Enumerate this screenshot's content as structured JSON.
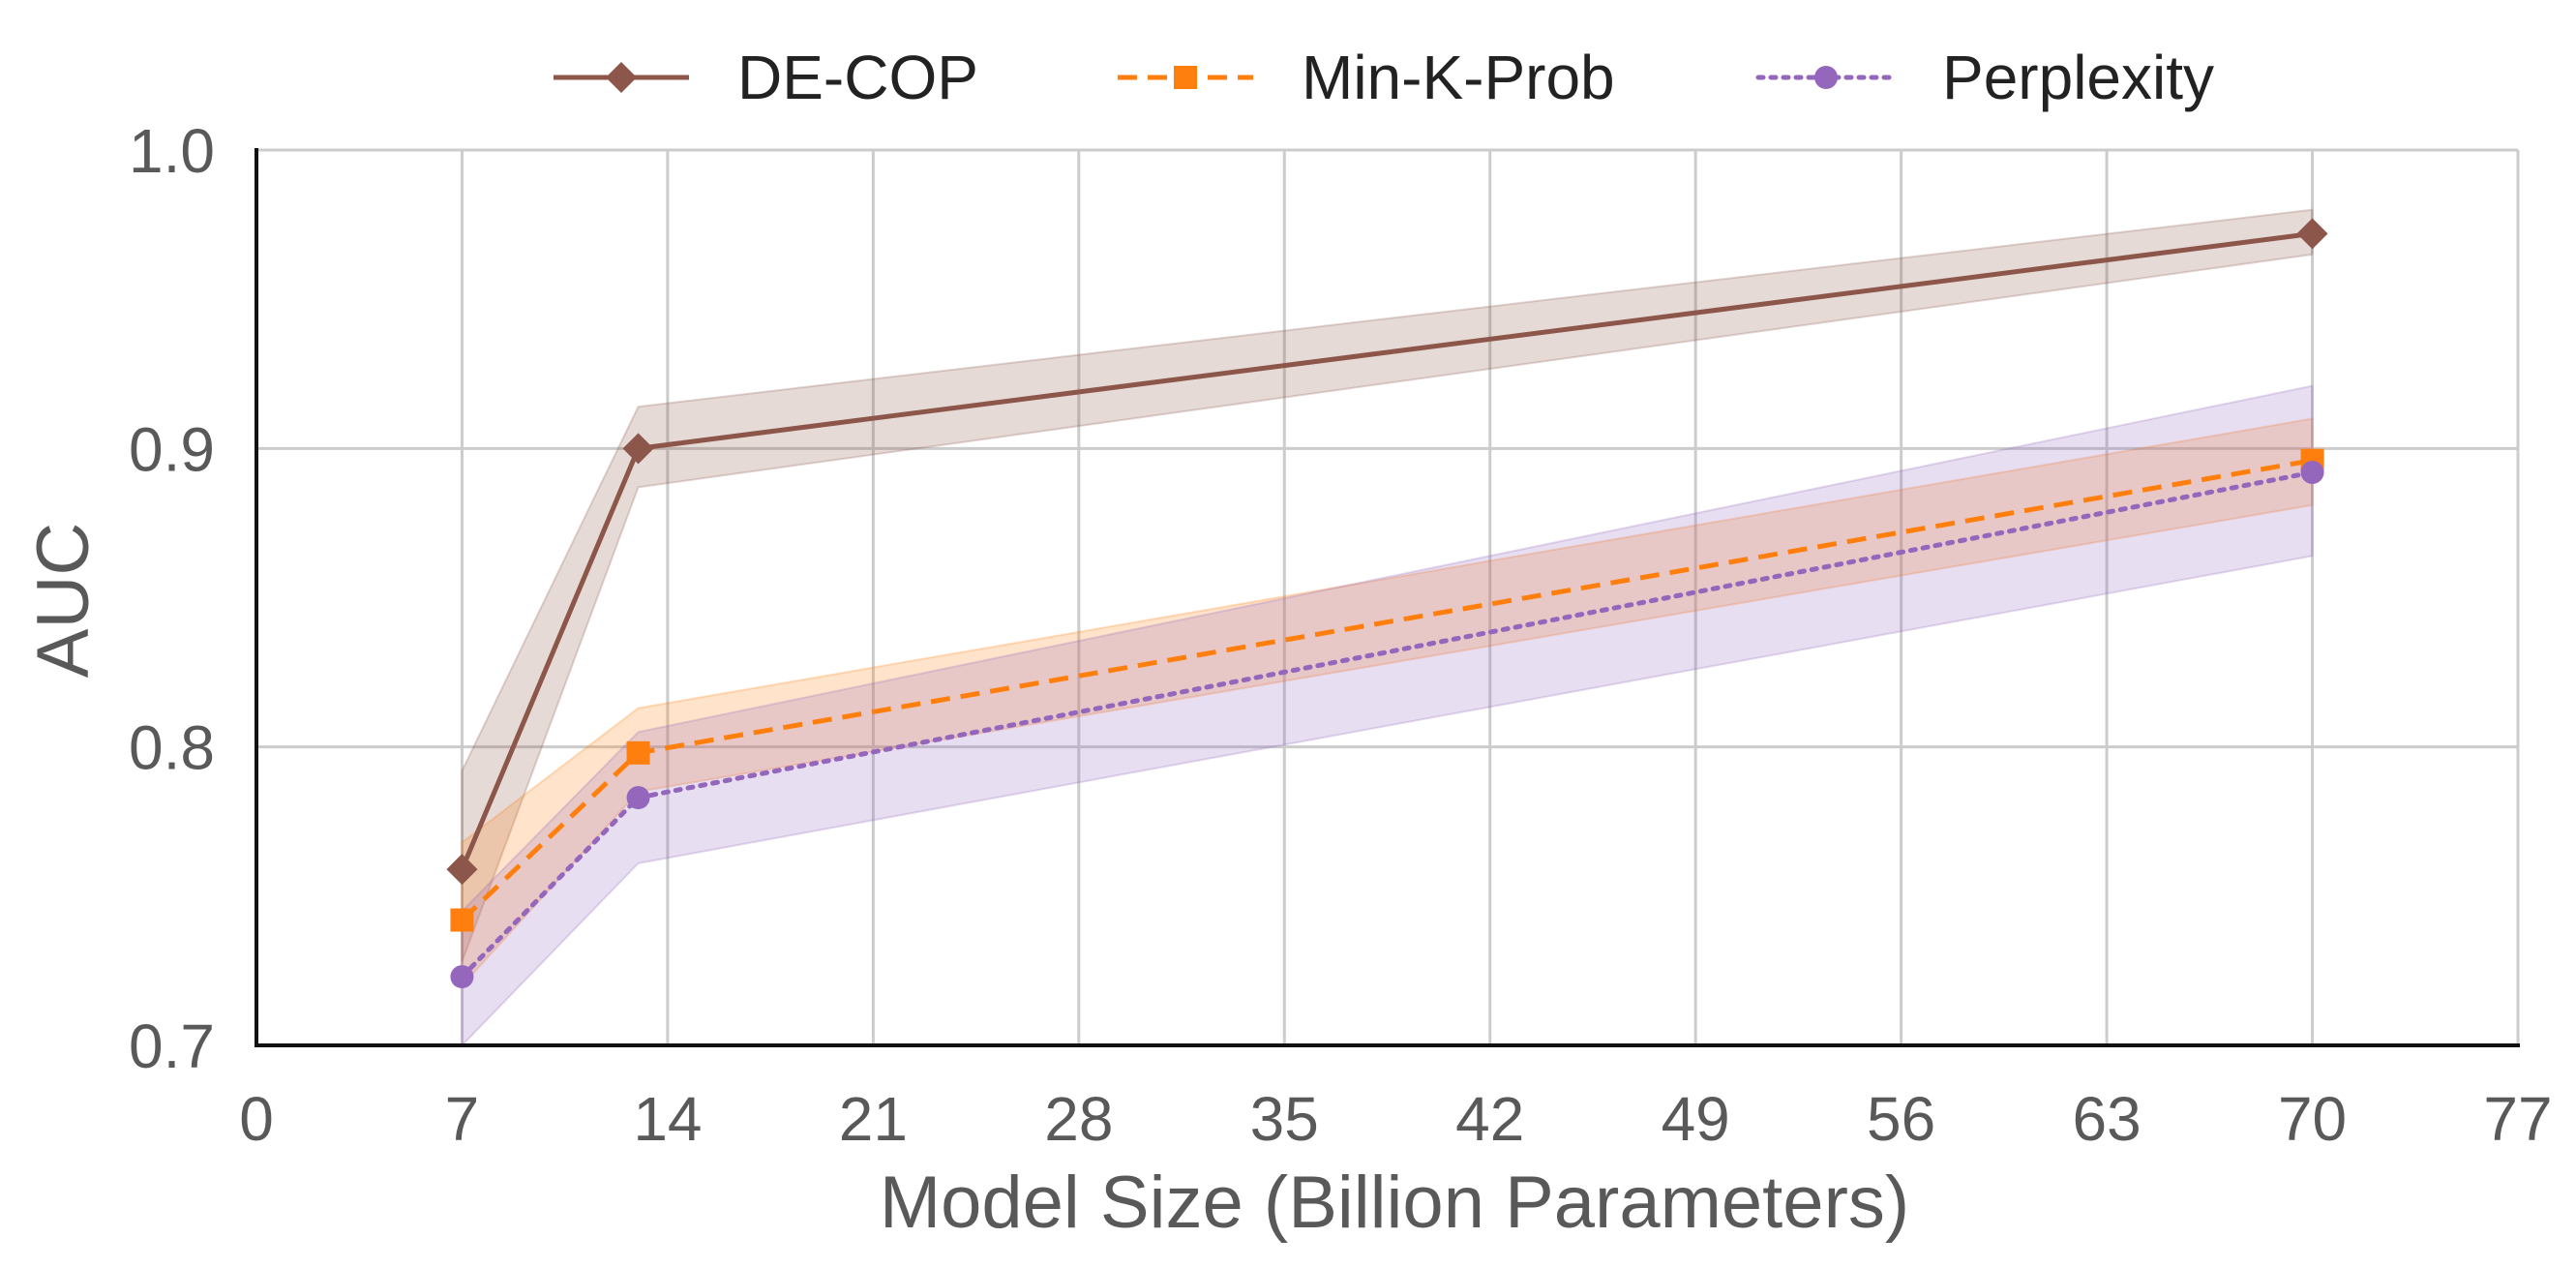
{
  "chart_data": {
    "type": "line",
    "xlabel": "Model Size (Billion Parameters)",
    "ylabel": "AUC",
    "xlim": [
      0,
      77
    ],
    "ylim": [
      0.7,
      1.0
    ],
    "x_ticks": [
      0,
      7,
      14,
      21,
      28,
      35,
      42,
      49,
      56,
      63,
      70,
      77
    ],
    "x_tick_labels": [
      "0",
      "7",
      "14",
      "21",
      "28",
      "35",
      "42",
      "49",
      "56",
      "63",
      "70",
      "77"
    ],
    "y_ticks": [
      0.7,
      0.8,
      0.9,
      1.0
    ],
    "y_tick_labels": [
      "0.7",
      "0.8",
      "0.9",
      "1.0"
    ],
    "grid": true,
    "legend_position": "top-center",
    "series": [
      {
        "name": "DE-COP",
        "color": "#8c564b",
        "line_style": "solid",
        "marker": "diamond",
        "x": [
          7,
          13,
          70
        ],
        "values": [
          0.759,
          0.9,
          0.972
        ],
        "lower": [
          0.728,
          0.887,
          0.965
        ],
        "upper": [
          0.792,
          0.914,
          0.98
        ]
      },
      {
        "name": "Min-K-Prob",
        "color": "#ff7f0e",
        "line_style": "dashed",
        "marker": "square",
        "x": [
          7,
          13,
          70
        ],
        "values": [
          0.742,
          0.798,
          0.896
        ],
        "lower": [
          0.72,
          0.785,
          0.881
        ],
        "upper": [
          0.768,
          0.813,
          0.91
        ]
      },
      {
        "name": "Perplexity",
        "color": "#9467bd",
        "line_style": "dotted",
        "marker": "circle",
        "x": [
          7,
          13,
          70
        ],
        "values": [
          0.723,
          0.783,
          0.892
        ],
        "lower": [
          0.7,
          0.761,
          0.864
        ],
        "upper": [
          0.745,
          0.805,
          0.921
        ]
      }
    ]
  }
}
